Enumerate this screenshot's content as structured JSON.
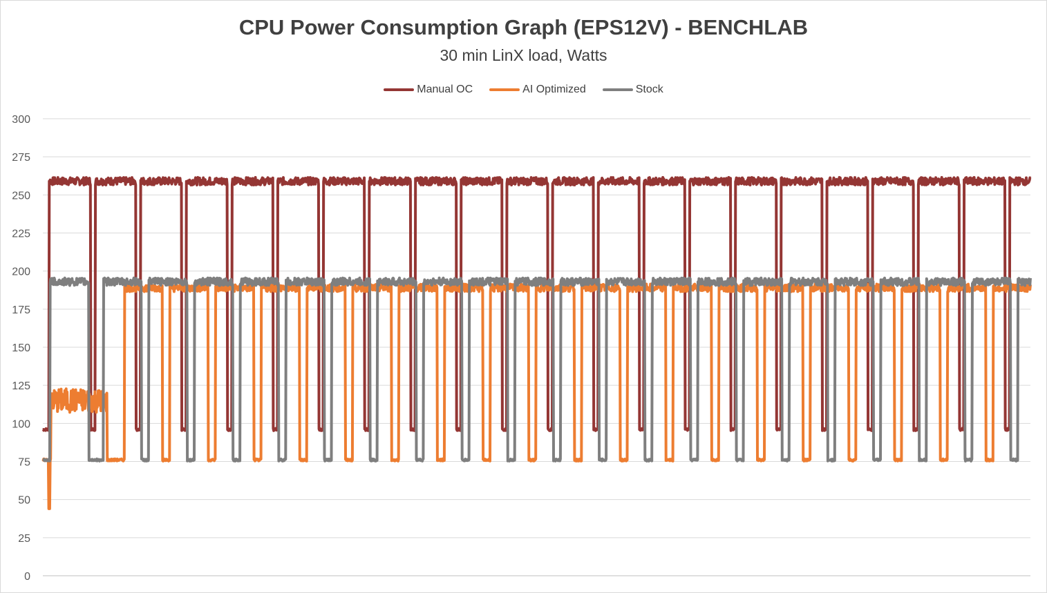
{
  "chart_data": {
    "type": "line",
    "title": "CPU Power Consumption Graph (EPS12V) - BENCHLAB",
    "subtitle": "30 min LinX load, Watts",
    "xlabel": "",
    "ylabel": "",
    "ylim": [
      0,
      300
    ],
    "y_ticks": [
      0,
      25,
      50,
      75,
      100,
      125,
      150,
      175,
      200,
      225,
      250,
      275,
      300
    ],
    "y_tick_labels": [
      "0",
      "25",
      "50",
      "75",
      "100",
      "125",
      "150",
      "175",
      "200",
      "225",
      "250",
      "275",
      "300"
    ],
    "grid": "horizontal",
    "legend_position": "top",
    "x_ticks_visible": false,
    "series": [
      {
        "name": "Manual OC",
        "color": "#943634",
        "low": 96,
        "high": 259,
        "high_windows": [
          [
            0.7,
            5.2
          ],
          [
            5.7,
            10.2
          ],
          [
            10.7,
            15.2
          ],
          [
            15.7,
            20.2
          ],
          [
            20.7,
            25.2
          ],
          [
            25.7,
            30.2
          ],
          [
            30.7,
            35.2
          ],
          [
            35.7,
            40.2
          ],
          [
            40.7,
            45.2
          ],
          [
            45.7,
            50.2
          ],
          [
            50.7,
            55.2
          ],
          [
            55.7,
            60.2
          ],
          [
            60.7,
            65.2
          ],
          [
            65.7,
            70.2
          ],
          [
            70.7,
            75.2
          ],
          [
            75.7,
            80.2
          ],
          [
            80.7,
            85.2
          ],
          [
            85.7,
            90.2
          ],
          [
            90.7,
            95.2
          ],
          [
            95.7,
            100.2
          ],
          [
            100.7,
            105.2
          ],
          [
            105.7,
            108.0
          ]
        ]
      },
      {
        "name": "AI Optimized",
        "color": "#ED7D31",
        "low": 76,
        "high": 189,
        "warmup_window": [
          0.9,
          7.0
        ],
        "warmup_level": 115,
        "dip_at": 0.7,
        "dip_value": 44,
        "high_windows": [
          [
            8.9,
            13.1
          ],
          [
            13.9,
            18.1
          ],
          [
            18.9,
            23.1
          ],
          [
            23.9,
            28.1
          ],
          [
            28.9,
            33.1
          ],
          [
            33.9,
            38.1
          ],
          [
            38.9,
            43.1
          ],
          [
            43.9,
            48.1
          ],
          [
            48.9,
            53.1
          ],
          [
            53.9,
            58.1
          ],
          [
            58.9,
            63.1
          ],
          [
            63.9,
            68.1
          ],
          [
            68.9,
            73.1
          ],
          [
            73.9,
            78.1
          ],
          [
            78.9,
            83.1
          ],
          [
            83.9,
            88.1
          ],
          [
            88.9,
            93.1
          ],
          [
            93.9,
            98.1
          ],
          [
            98.9,
            103.1
          ],
          [
            103.9,
            108.0
          ]
        ]
      },
      {
        "name": "Stock",
        "color": "#7F7F7F",
        "low": 76,
        "high": 193,
        "high_windows": [
          [
            0.8,
            5.0
          ],
          [
            6.6,
            10.8
          ],
          [
            11.6,
            15.8
          ],
          [
            16.6,
            20.8
          ],
          [
            21.6,
            25.8
          ],
          [
            26.6,
            30.8
          ],
          [
            31.6,
            35.8
          ],
          [
            36.6,
            40.8
          ],
          [
            41.6,
            45.8
          ],
          [
            46.6,
            50.8
          ],
          [
            51.6,
            55.8
          ],
          [
            56.6,
            60.8
          ],
          [
            61.6,
            65.8
          ],
          [
            66.6,
            70.8
          ],
          [
            71.6,
            75.8
          ],
          [
            76.6,
            80.8
          ],
          [
            81.6,
            85.8
          ],
          [
            86.6,
            90.8
          ],
          [
            91.6,
            95.8
          ],
          [
            96.6,
            100.8
          ],
          [
            101.6,
            105.8
          ],
          [
            106.6,
            108.0
          ]
        ]
      }
    ]
  }
}
